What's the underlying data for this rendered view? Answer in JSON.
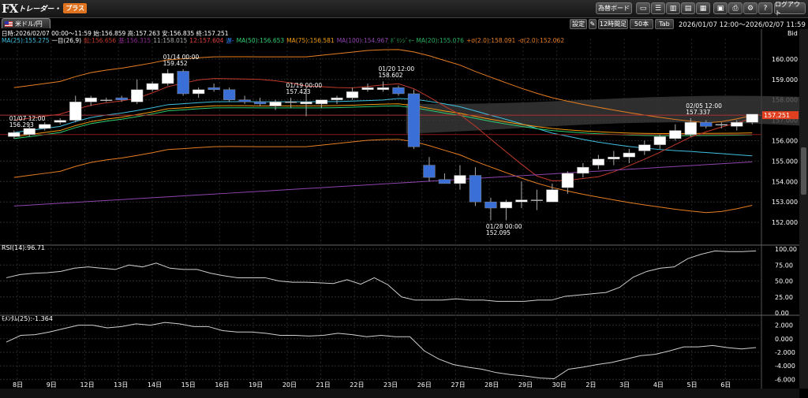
{
  "toolbar": {
    "logo_fx": "FX",
    "logo_sub": "トレーダー・",
    "logo_plus": "プラス",
    "board_button": "為替ボード",
    "logout_button": "ログアウト",
    "icons": [
      "window-icon",
      "list-icon",
      "tile-icon",
      "tile2-icon",
      "tile3-icon",
      "save-icon",
      "print-icon",
      "settings-icon",
      "help-icon"
    ]
  },
  "tab": {
    "pair": "米ドル/円",
    "flag": "us-jp-flag-icon"
  },
  "controls": {
    "settings": "設定",
    "period": "12時間足",
    "count": "50本",
    "tab": "Tab"
  },
  "range_text": "2026/01/07 12:00～2026/02/07 11:59",
  "price_side": "Bid",
  "ohlc_text": "日時:2026/02/07 00:00～11:59 始:156.859 高:157.263 安:156.835 終:157.251",
  "legend": [
    {
      "text": "MA(25):155.275",
      "color": "#3fc0e0"
    },
    {
      "text": "一目(26,9)",
      "color": "#ffffff"
    },
    {
      "text": "転:156.656",
      "color": "#c0392b"
    },
    {
      "text": "基:156.315",
      "color": "#8e2a8e"
    },
    {
      "text": "11:158.015",
      "color": "#aaaaaa"
    },
    {
      "text": "12:157.604",
      "color": "#e04040"
    },
    {
      "text": "遅-",
      "color": "#2e86ff"
    },
    {
      "text": "MA(50):156.653",
      "color": "#2ecc71"
    },
    {
      "text": "MA(75):156.581",
      "color": "#f39c12"
    },
    {
      "text": "MA(100):154.967",
      "color": "#8e44ad"
    },
    {
      "text": "ﾎﾞﾘﾝｼﾞｬｰ MA(20):155.076",
      "color": "#27ae60"
    },
    {
      "text": "+σ(2.0):158.091",
      "color": "#e67e22"
    },
    {
      "text": "-σ(2.0):152.062",
      "color": "#e67e22"
    }
  ],
  "current_price": "157.251",
  "rsi_title": "RSI(14):96.71",
  "mom_title": "ﾓﾒﾝﾀﾑ(25):-1.364",
  "colors": {
    "up": "#ffffff",
    "down": "#3a6fd8",
    "price_tag": "#e04020",
    "grid": "#333333"
  },
  "chart_data": {
    "type": "candlestick",
    "price_ylim": [
      151.0,
      161.0
    ],
    "price_ticks": [
      "160.000",
      "159.000",
      "158.000",
      "157.000",
      "156.000",
      "155.000",
      "154.000",
      "153.000",
      "152.000"
    ],
    "rsi_ticks": [
      "100.00",
      "75.00",
      "50.00",
      "25.00",
      "0.00"
    ],
    "mom_ticks": [
      "2.000",
      "0.000",
      "-2.000",
      "-4.000",
      "-6.000"
    ],
    "x_labels": [
      "8日",
      "9日",
      "12日",
      "13日",
      "14日",
      "15日",
      "16日",
      "19日",
      "20日",
      "21日",
      "22日",
      "23日",
      "26日",
      "27日",
      "28日",
      "29日",
      "30日",
      "2日",
      "3日",
      "4日",
      "5日",
      "6日"
    ],
    "candles": [
      [
        156.2,
        156.5,
        156.1,
        156.4
      ],
      [
        156.3,
        156.7,
        156.2,
        156.6
      ],
      [
        156.6,
        156.9,
        156.5,
        156.8
      ],
      [
        156.9,
        157.1,
        156.8,
        157.0
      ],
      [
        157.0,
        158.2,
        156.9,
        157.9
      ],
      [
        157.9,
        158.2,
        157.7,
        158.1
      ],
      [
        158.0,
        158.1,
        157.9,
        158.0
      ],
      [
        158.1,
        158.2,
        157.9,
        158.0
      ],
      [
        157.9,
        159.0,
        157.8,
        158.5
      ],
      [
        158.5,
        158.9,
        158.4,
        158.8
      ],
      [
        158.8,
        159.5,
        158.7,
        159.3
      ],
      [
        159.4,
        159.5,
        158.2,
        158.3
      ],
      [
        158.3,
        158.6,
        158.1,
        158.5
      ],
      [
        158.6,
        158.8,
        158.4,
        158.5
      ],
      [
        158.5,
        158.6,
        157.9,
        158.0
      ],
      [
        158.0,
        158.2,
        157.8,
        157.9
      ],
      [
        157.9,
        158.1,
        157.7,
        157.8
      ],
      [
        157.7,
        158.0,
        157.5,
        157.9
      ],
      [
        157.9,
        158.1,
        157.6,
        157.9
      ],
      [
        157.8,
        158.6,
        157.2,
        157.9
      ],
      [
        157.8,
        158.0,
        157.6,
        158.0
      ],
      [
        158.0,
        158.2,
        157.8,
        158.1
      ],
      [
        158.1,
        158.6,
        158.0,
        158.4
      ],
      [
        158.5,
        158.8,
        158.4,
        158.6
      ],
      [
        158.5,
        158.9,
        158.4,
        158.6
      ],
      [
        158.6,
        158.7,
        158.2,
        158.3
      ],
      [
        158.3,
        158.5,
        155.6,
        155.7
      ],
      [
        154.8,
        155.2,
        154.0,
        154.2
      ],
      [
        154.1,
        154.4,
        153.9,
        153.9
      ],
      [
        153.9,
        154.8,
        153.6,
        154.3
      ],
      [
        154.3,
        154.7,
        152.8,
        153.0
      ],
      [
        153.0,
        153.2,
        152.1,
        152.7
      ],
      [
        152.7,
        153.1,
        152.1,
        153.0
      ],
      [
        153.0,
        154.0,
        152.7,
        153.1
      ],
      [
        153.1,
        153.6,
        152.6,
        153.1
      ],
      [
        153.0,
        153.9,
        153.0,
        153.6
      ],
      [
        153.7,
        154.5,
        153.4,
        154.4
      ],
      [
        154.4,
        154.9,
        154.2,
        154.7
      ],
      [
        154.8,
        155.3,
        154.6,
        155.1
      ],
      [
        155.1,
        155.5,
        154.8,
        155.2
      ],
      [
        155.2,
        155.6,
        154.9,
        155.4
      ],
      [
        155.5,
        156.0,
        155.3,
        155.8
      ],
      [
        155.8,
        156.3,
        155.6,
        156.2
      ],
      [
        156.1,
        156.8,
        156.0,
        156.5
      ],
      [
        156.3,
        157.1,
        156.2,
        156.9
      ],
      [
        156.9,
        157.0,
        156.6,
        156.7
      ],
      [
        156.8,
        156.9,
        156.6,
        156.8
      ],
      [
        156.7,
        157.0,
        156.5,
        156.9
      ],
      [
        156.9,
        157.3,
        156.8,
        157.3
      ]
    ],
    "annotations": [
      {
        "time": "01/07 12:00",
        "price": "156.293"
      },
      {
        "time": "01/14 00:00",
        "price": "159.452"
      },
      {
        "time": "01/19 00:00",
        "price": "157.423"
      },
      {
        "time": "01/20 12:00",
        "price": "158.602"
      },
      {
        "time": "01/28 00:00",
        "price": "152.095"
      },
      {
        "time": "02/05 12:00",
        "price": "157.337"
      }
    ],
    "rsi": [
      55,
      60,
      62,
      63,
      65,
      70,
      72,
      70,
      68,
      75,
      72,
      78,
      70,
      68,
      68,
      62,
      58,
      55,
      55,
      55,
      50,
      48,
      48,
      47,
      46,
      52,
      45,
      55,
      44,
      25,
      20,
      20,
      20,
      22,
      20,
      20,
      18,
      18,
      18,
      20,
      20,
      26,
      28,
      30,
      32,
      40,
      56,
      65,
      70,
      72,
      85,
      92,
      97,
      96,
      96,
      97
    ],
    "momentum": [
      -0.5,
      0.5,
      0.6,
      1.0,
      1.5,
      2.0,
      2.0,
      1.6,
      1.8,
      2.2,
      2.0,
      2.4,
      2.2,
      1.8,
      1.8,
      1.2,
      1.0,
      1.0,
      0.8,
      0.5,
      0.5,
      0.4,
      0.5,
      0.8,
      0.6,
      0.3,
      0.5,
      0.3,
      0.3,
      -1.8,
      -3.0,
      -3.8,
      -4.2,
      -4.5,
      -5.0,
      -5.3,
      -5.5,
      -5.8,
      -5.9,
      -4.5,
      -4.2,
      -3.8,
      -3.5,
      -3.0,
      -2.5,
      -2.3,
      -1.8,
      -1.2,
      -1.2,
      -1.0,
      -1.3,
      -1.5,
      -1.3
    ]
  }
}
